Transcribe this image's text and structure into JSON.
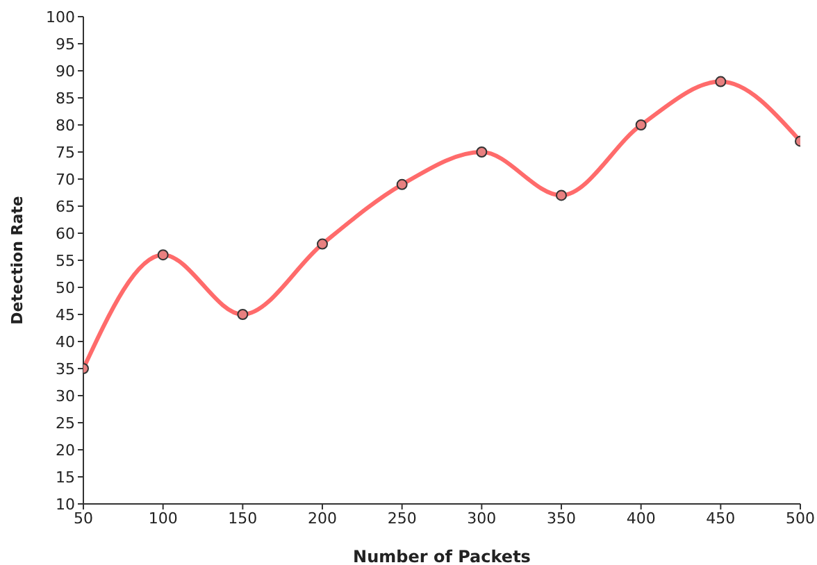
{
  "chart_data": {
    "type": "line",
    "xlabel": "Number of Packets",
    "ylabel": "Detection Rate",
    "x": [
      50,
      100,
      150,
      200,
      250,
      300,
      350,
      400,
      450,
      500
    ],
    "series": [
      {
        "color": "#ff6b6b",
        "values": [
          35,
          56,
          45,
          58,
          69,
          75,
          67,
          80,
          88,
          77
        ]
      }
    ],
    "xlim": [
      50,
      500
    ],
    "xticks": [
      50,
      100,
      150,
      200,
      250,
      300,
      350,
      400,
      450,
      500
    ],
    "ylim": [
      10,
      100
    ],
    "yticks": [
      10,
      15,
      20,
      25,
      30,
      35,
      40,
      45,
      50,
      55,
      60,
      65,
      70,
      75,
      80,
      85,
      90,
      95,
      100
    ],
    "grid": false,
    "legend": false,
    "marker": "circle",
    "line_style": "solid"
  }
}
